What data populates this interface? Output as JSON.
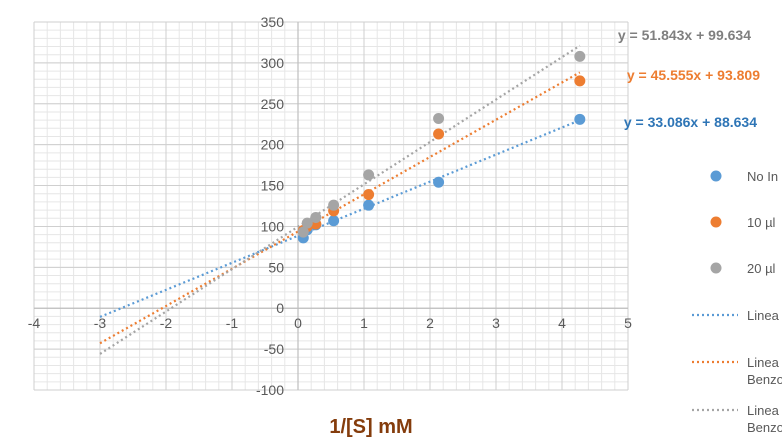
{
  "chart_data": {
    "type": "scatter",
    "title": "",
    "xlabel": "1/[S] mM",
    "ylabel": "",
    "xlim": [
      -4,
      5
    ],
    "ylim": [
      -100,
      350
    ],
    "xticks": [
      "-4",
      "-3",
      "-2",
      "-1",
      "0",
      "1",
      "2",
      "3",
      "4",
      "5"
    ],
    "yticks": [
      "-100",
      "-50",
      "0",
      "50",
      "100",
      "150",
      "200",
      "250",
      "300",
      "350"
    ],
    "grid": true,
    "legend_position": "right",
    "series": [
      {
        "name": "No In",
        "color": "#5b9bd5",
        "points": [
          [
            0.08,
            86
          ],
          [
            0.14,
            96
          ],
          [
            0.27,
            102
          ],
          [
            0.54,
            107
          ],
          [
            1.07,
            126
          ],
          [
            2.13,
            154
          ],
          [
            4.27,
            231
          ]
        ],
        "trendline": {
          "slope": 33.086,
          "intercept": 88.634,
          "x_range": [
            -3,
            4.27
          ],
          "equation": "y = 33.086x + 88.634",
          "legend": "Linea"
        }
      },
      {
        "name": "10 µl",
        "color": "#ed7d31",
        "points": [
          [
            0.08,
            95
          ],
          [
            0.14,
            100
          ],
          [
            0.27,
            103
          ],
          [
            0.54,
            119
          ],
          [
            1.07,
            139
          ],
          [
            2.13,
            213
          ],
          [
            4.27,
            278
          ]
        ],
        "trendline": {
          "slope": 45.555,
          "intercept": 93.809,
          "x_range": [
            -3,
            4.27
          ],
          "equation": "y = 45.555x + 93.809",
          "legend": "Linea\nBenzo"
        }
      },
      {
        "name": "20 µl",
        "color": "#a5a5a5",
        "points": [
          [
            0.08,
            93
          ],
          [
            0.14,
            104
          ],
          [
            0.27,
            111
          ],
          [
            0.54,
            126
          ],
          [
            1.07,
            163
          ],
          [
            2.13,
            232
          ],
          [
            4.27,
            308
          ]
        ],
        "trendline": {
          "slope": 51.843,
          "intercept": 99.634,
          "x_range": [
            -3,
            4.27
          ],
          "equation": "y = 51.843x + 99.634",
          "legend": "Linea\nBenzo"
        }
      }
    ]
  }
}
